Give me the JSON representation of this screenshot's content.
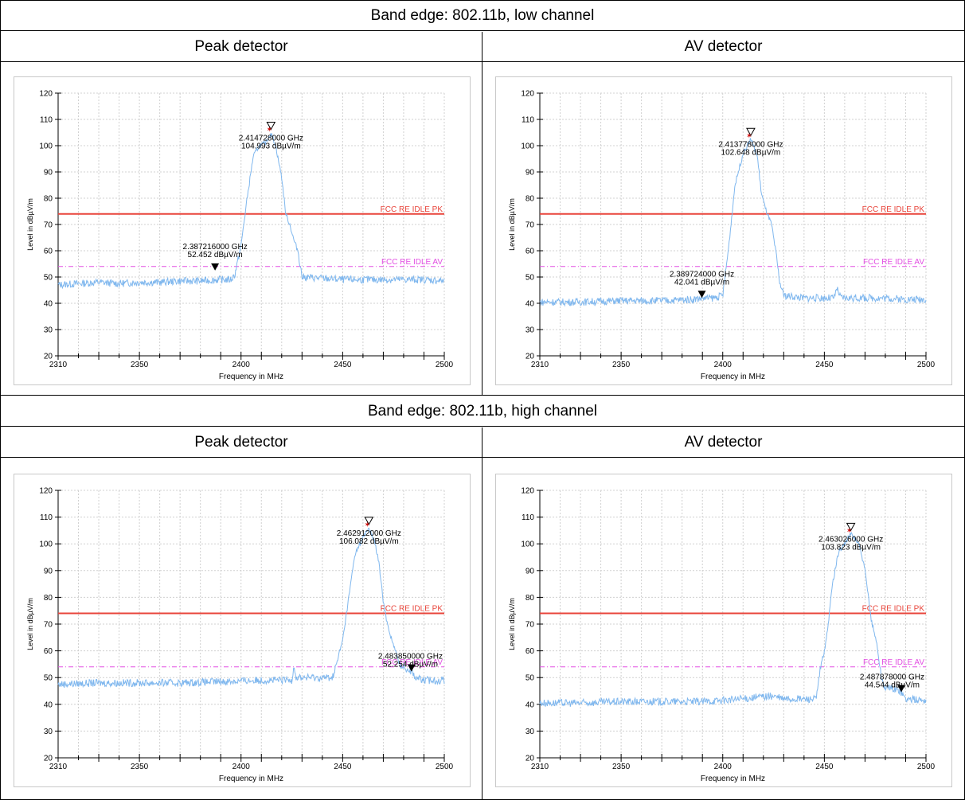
{
  "sections": [
    {
      "title": "Band edge: 802.11b, low channel",
      "left_header": "Peak detector",
      "right_header": "AV detector"
    },
    {
      "title": "Band edge: 802.11b, high channel",
      "left_header": "Peak detector",
      "right_header": "AV detector"
    }
  ],
  "chart_data": [
    {
      "type": "line",
      "panel": "low channel, Peak detector",
      "xlabel": "Frequency in MHz",
      "ylabel": "Level in dBµV/m",
      "xlim": [
        2310,
        2500
      ],
      "ylim": [
        20,
        120
      ],
      "xticks": [
        2310,
        2350,
        2400,
        2450,
        2500
      ],
      "yticks": [
        20,
        30,
        40,
        50,
        60,
        70,
        80,
        90,
        100,
        110,
        120
      ],
      "grid": true,
      "series": [
        {
          "color": "#7fb7ee",
          "x": [
            2310,
            2320,
            2330,
            2340,
            2350,
            2360,
            2370,
            2380,
            2390,
            2395,
            2397,
            2400,
            2403,
            2406,
            2409,
            2412,
            2414.7,
            2417,
            2420,
            2422,
            2424,
            2426,
            2428,
            2430,
            2440,
            2450,
            2460,
            2470,
            2480,
            2490,
            2500
          ],
          "y": [
            47,
            47.5,
            48,
            47.5,
            48,
            48,
            48.5,
            48.5,
            49,
            49,
            51,
            62,
            80,
            96,
            100,
            101,
            104.9,
            100,
            88,
            74,
            70,
            64,
            60,
            50,
            49.5,
            49,
            49,
            49,
            49,
            49,
            48.5
          ]
        }
      ],
      "limit_lines": [
        {
          "name": "FCC RE IDLE PK",
          "value": 74,
          "color": "#e8443a"
        },
        {
          "name": "FCC RE IDLE AV",
          "value": 54,
          "color": "#e24ee2"
        }
      ],
      "markers": [
        {
          "x": 2414.728,
          "y": 104.993,
          "label1": "2.414728000 GHz",
          "label2": "104.993 dBµV/m",
          "style": "peak"
        },
        {
          "x": 2387.216,
          "y": 52.452,
          "label1": "2.387216000 GHz",
          "label2": "52.452 dBµV/m",
          "style": "edge"
        }
      ]
    },
    {
      "type": "line",
      "panel": "low channel, AV detector",
      "xlabel": "Frequency in MHz",
      "ylabel": "Level in dBµV/m",
      "xlim": [
        2310,
        2500
      ],
      "ylim": [
        20,
        120
      ],
      "xticks": [
        2310,
        2350,
        2400,
        2450,
        2500
      ],
      "yticks": [
        20,
        30,
        40,
        50,
        60,
        70,
        80,
        90,
        100,
        110,
        120
      ],
      "grid": true,
      "series": [
        {
          "color": "#7fb7ee",
          "x": [
            2310,
            2330,
            2350,
            2370,
            2385,
            2390,
            2395,
            2398,
            2400,
            2403,
            2406,
            2410,
            2413.8,
            2417,
            2419,
            2421,
            2424,
            2426,
            2428,
            2430,
            2440,
            2450,
            2455,
            2456,
            2458,
            2470,
            2480,
            2490,
            2500
          ],
          "y": [
            40.5,
            40.5,
            41,
            41,
            41.5,
            42,
            42,
            42.5,
            43,
            62,
            85,
            97,
            102.6,
            96,
            82,
            76,
            70,
            60,
            48,
            43,
            42,
            42,
            42,
            46,
            42,
            42,
            42,
            41.5,
            41.5
          ]
        }
      ],
      "limit_lines": [
        {
          "name": "FCC RE IDLE PK",
          "value": 74,
          "color": "#e8443a"
        },
        {
          "name": "FCC RE IDLE AV",
          "value": 54,
          "color": "#e24ee2"
        }
      ],
      "markers": [
        {
          "x": 2413.778,
          "y": 102.648,
          "label1": "2.413778000 GHz",
          "label2": "102.648 dBµV/m",
          "style": "peak"
        },
        {
          "x": 2389.724,
          "y": 42.041,
          "label1": "2.389724000 GHz",
          "label2": "42.041 dBµV/m",
          "style": "edge"
        }
      ]
    },
    {
      "type": "line",
      "panel": "high channel, Peak detector",
      "xlabel": "Frequency in MHz",
      "ylabel": "Level in dBµV/m",
      "xlim": [
        2310,
        2500
      ],
      "ylim": [
        20,
        120
      ],
      "xticks": [
        2310,
        2350,
        2400,
        2450,
        2500
      ],
      "yticks": [
        20,
        30,
        40,
        50,
        60,
        70,
        80,
        90,
        100,
        110,
        120
      ],
      "grid": true,
      "series": [
        {
          "color": "#7fb7ee",
          "x": [
            2310,
            2330,
            2350,
            2370,
            2390,
            2410,
            2425,
            2426,
            2427,
            2440,
            2445,
            2447,
            2450,
            2453,
            2456,
            2459,
            2462.9,
            2466,
            2468,
            2470,
            2472,
            2475,
            2478,
            2483.9,
            2486,
            2490,
            2500
          ],
          "y": [
            47.5,
            48,
            48,
            48,
            48.5,
            49,
            49,
            55,
            50,
            50,
            50,
            55,
            64,
            80,
            96,
            101,
            106,
            100,
            92,
            78,
            70,
            62,
            55,
            52.3,
            50,
            49,
            49
          ]
        }
      ],
      "limit_lines": [
        {
          "name": "FCC RE IDLE PK",
          "value": 74,
          "color": "#e8443a"
        },
        {
          "name": "FCC RE IDLE AV",
          "value": 54,
          "color": "#e24ee2"
        }
      ],
      "markers": [
        {
          "x": 2462.912,
          "y": 106.082,
          "label1": "2.462912000 GHz",
          "label2": "106.082 dBµV/m",
          "style": "peak"
        },
        {
          "x": 2483.85,
          "y": 52.254,
          "label1": "2.483850000 GHz",
          "label2": "52.254 dBµV/m",
          "style": "edge"
        }
      ]
    },
    {
      "type": "line",
      "panel": "high channel, AV detector",
      "xlabel": "Frequency in MHz",
      "ylabel": "Level in dBµV/m",
      "xlim": [
        2310,
        2500
      ],
      "ylim": [
        20,
        120
      ],
      "xticks": [
        2310,
        2350,
        2400,
        2450,
        2500
      ],
      "yticks": [
        20,
        30,
        40,
        50,
        60,
        70,
        80,
        90,
        100,
        110,
        120
      ],
      "grid": true,
      "series": [
        {
          "color": "#7fb7ee",
          "x": [
            2310,
            2330,
            2350,
            2370,
            2390,
            2410,
            2420,
            2425,
            2430,
            2440,
            2446,
            2448,
            2451,
            2454,
            2457,
            2460,
            2463,
            2467,
            2470,
            2473,
            2476,
            2478,
            2480,
            2484,
            2487.9,
            2490,
            2500
          ],
          "y": [
            40.5,
            40.5,
            41,
            41,
            41,
            42,
            43,
            43,
            42,
            42,
            42,
            53,
            64,
            85,
            97,
            100,
            103.8,
            100,
            90,
            72,
            62,
            50,
            46,
            46,
            44.5,
            42,
            41.5
          ]
        }
      ],
      "limit_lines": [
        {
          "name": "FCC RE IDLE PK",
          "value": 74,
          "color": "#e8443a"
        },
        {
          "name": "FCC RE IDLE AV",
          "value": 54,
          "color": "#e24ee2"
        }
      ],
      "markers": [
        {
          "x": 2463.026,
          "y": 103.823,
          "label1": "2.463026000 GHz",
          "label2": "103.823 dBµV/m",
          "style": "peak"
        },
        {
          "x": 2487.878,
          "y": 44.544,
          "label1": "2.487878000 GHz",
          "label2": "44.544 dBµV/m",
          "style": "edge"
        }
      ]
    }
  ]
}
